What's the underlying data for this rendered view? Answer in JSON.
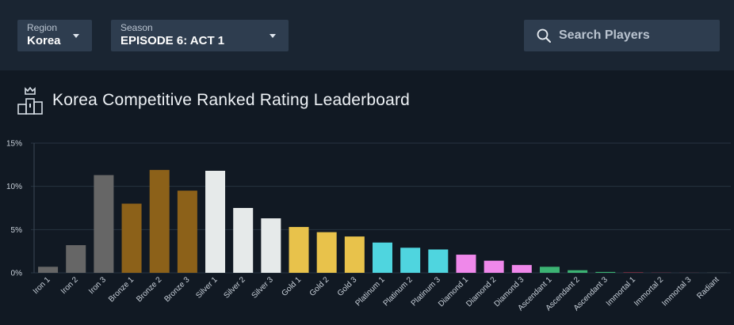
{
  "filters": {
    "region": {
      "label": "Region",
      "value": "Korea"
    },
    "season": {
      "label": "Season",
      "value": "EPISODE 6: ACT 1"
    }
  },
  "search": {
    "placeholder": "Search Players"
  },
  "icons": {
    "search": "search-icon",
    "podium": "podium-icon",
    "caret": "chevron-down-icon"
  },
  "chart_data": {
    "type": "bar",
    "title": "Korea Competitive Ranked Rating Leaderboard",
    "xlabel": "",
    "ylabel": "",
    "ylim": [
      0,
      15
    ],
    "yticks": [
      0,
      5,
      10,
      15
    ],
    "ytick_labels": [
      "0%",
      "5%",
      "10%",
      "15%"
    ],
    "grid": true,
    "categories": [
      "Iron 1",
      "Iron 2",
      "Iron 3",
      "Bronze 1",
      "Bronze 2",
      "Bronze 3",
      "Silver 1",
      "Silver 2",
      "Silver 3",
      "Gold 1",
      "Gold 2",
      "Gold 3",
      "Platinum 1",
      "Platinum 2",
      "Platinum 3",
      "Diamond 1",
      "Diamond 2",
      "Diamond 3",
      "Ascendant 1",
      "Ascendant 2",
      "Ascendant 3",
      "Immortal 1",
      "Immortal 2",
      "Immortal 3",
      "Radiant"
    ],
    "values": [
      0.7,
      3.2,
      11.3,
      8.0,
      11.9,
      9.5,
      11.8,
      7.5,
      6.3,
      5.3,
      4.7,
      4.2,
      3.5,
      2.9,
      2.7,
      2.1,
      1.4,
      0.9,
      0.7,
      0.3,
      0.1,
      0.05,
      0.02,
      0.01,
      0.005
    ],
    "colors": [
      "#666666",
      "#666666",
      "#666666",
      "#8c6119",
      "#8c6119",
      "#8c6119",
      "#e6eaea",
      "#e6eaea",
      "#e6eaea",
      "#e8c24b",
      "#e8c24b",
      "#e8c24b",
      "#4fd5df",
      "#4fd5df",
      "#4fd5df",
      "#ef88ea",
      "#ef88ea",
      "#ef88ea",
      "#3cb373",
      "#3cb373",
      "#3cb373",
      "#b83a52",
      "#b83a52",
      "#b83a52",
      "#fff0b3"
    ]
  }
}
